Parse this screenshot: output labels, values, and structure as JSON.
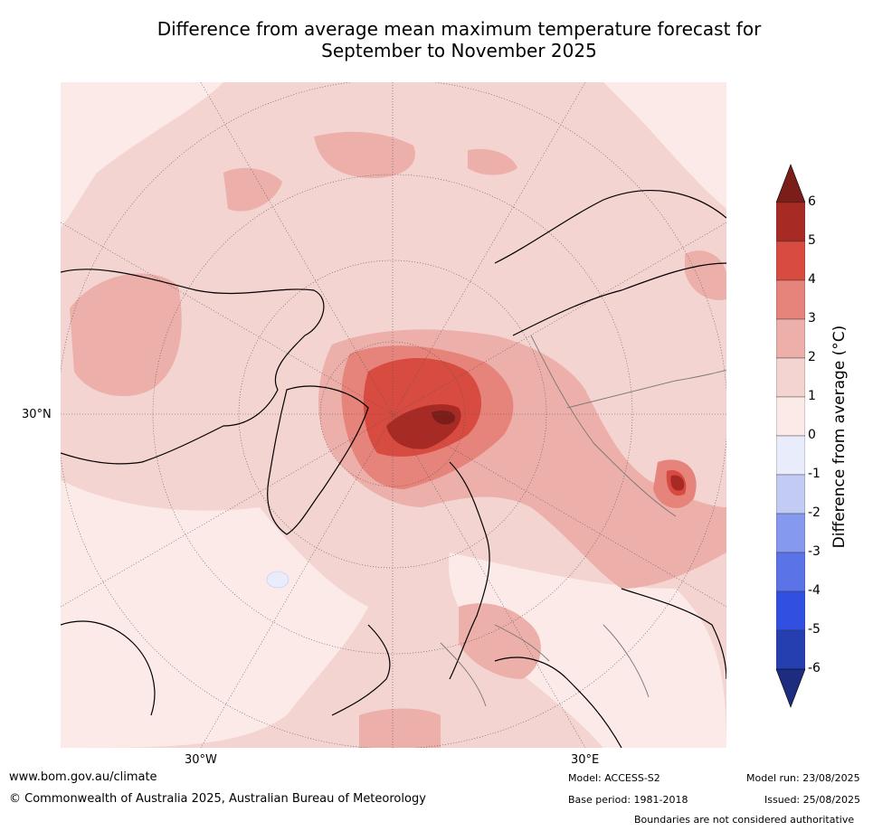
{
  "title_line1": "Difference from average mean maximum temperature forecast for",
  "title_line2": "September to November 2025",
  "map": {
    "lat_label": "30°N",
    "lon_label_west": "30°W",
    "lon_label_east": "30°E"
  },
  "colorbar": {
    "label": "Difference from average (°C)",
    "ticks": [
      "6",
      "5",
      "4",
      "3",
      "2",
      "1",
      "0",
      "-1",
      "-2",
      "-3",
      "-4",
      "-5",
      "-6"
    ],
    "colors": {
      "above_6": "#7b1e1a",
      "5_6": "#a82a24",
      "4_5": "#d74b40",
      "3_4": "#e6837b",
      "2_3": "#edafaa",
      "1_2": "#f4d4d1",
      "0_1": "#fbeae8",
      "m1_0": "#e8ecfb",
      "m2_m1": "#c1cbf4",
      "m3_m2": "#8599ee",
      "m4_m3": "#5a74e8",
      "m5_m4": "#3150e2",
      "m6_m5": "#253fb1",
      "below_m6": "#1e2c80"
    }
  },
  "footer": {
    "website": "www.bom.gov.au/climate",
    "copyright": "© Commonwealth of Australia 2025, Australian Bureau of Meteorology",
    "model": "Model: ACCESS-S2",
    "base_period": "Base period: 1981-2018",
    "model_run": "Model run: 23/08/2025",
    "issued": "Issued: 25/08/2025",
    "disclaimer": "Boundaries are not considered authoritative"
  }
}
